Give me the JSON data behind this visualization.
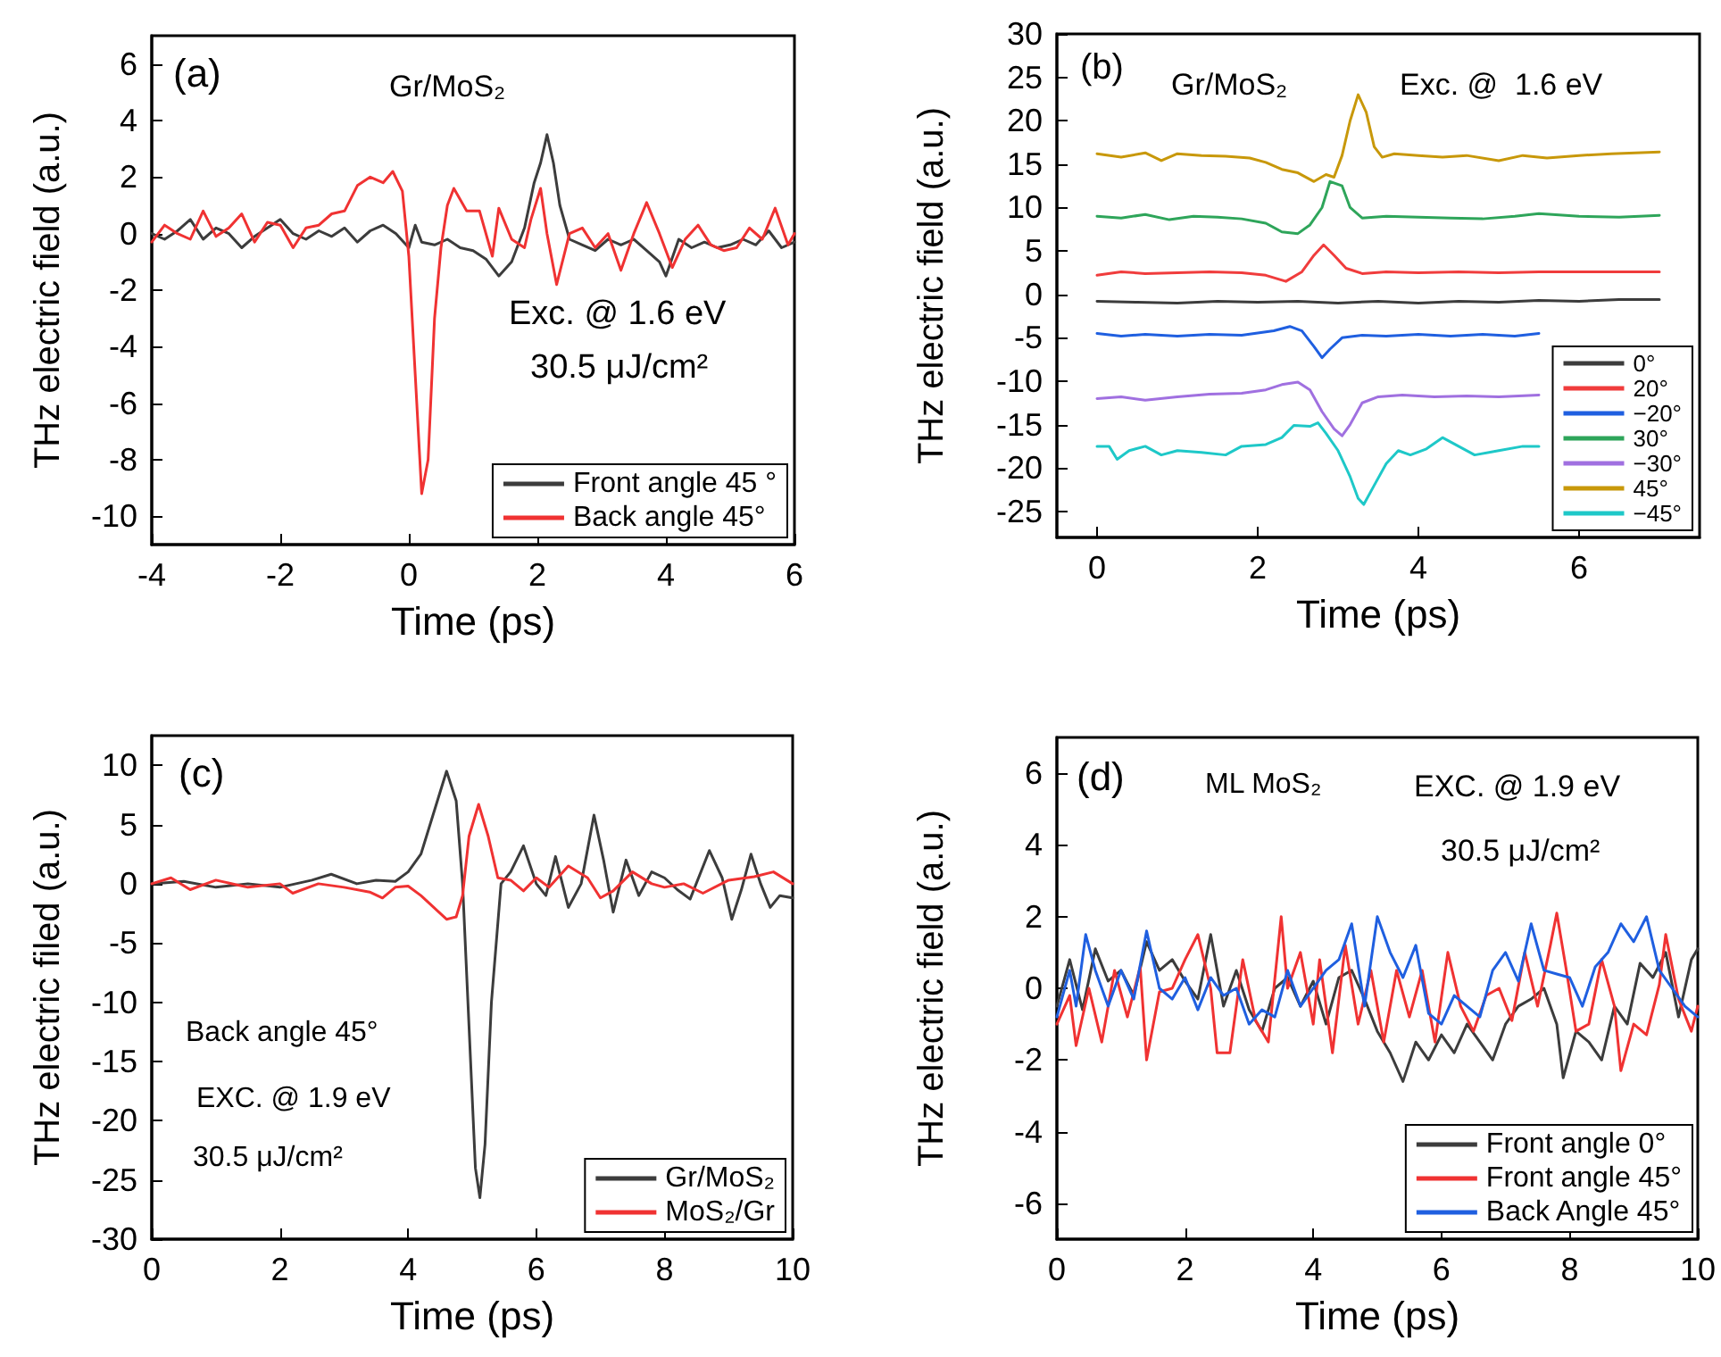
{
  "chart_data": [
    {
      "type": "line",
      "xlabel": "Time (ps)",
      "ylabel": "THz electric field (a.u.)",
      "xlim": [
        -4,
        6
      ],
      "xticks": [
        -4,
        -2,
        0,
        2,
        4,
        6
      ],
      "ylim": [
        -11,
        7
      ],
      "yticks": [
        -10,
        -8,
        -6,
        -4,
        -2,
        0,
        2,
        4,
        6
      ],
      "legend": "bottom right",
      "marker": "none",
      "annotations": [
        "(a)",
        "Gr/MoS₂",
        "Exc. @ 1.6 eV",
        "30.5 μJ/cm²"
      ],
      "series": [
        {
          "name": "Front angle 45 °",
          "color": "#3c3c3c",
          "x": [
            -4,
            -3.8,
            -3.6,
            -3.4,
            -3.2,
            -3,
            -2.8,
            -2.6,
            -2.4,
            -2.2,
            -2,
            -1.8,
            -1.6,
            -1.4,
            -1.2,
            -1,
            -0.8,
            -0.6,
            -0.4,
            -0.2,
            0,
            0.1,
            0.2,
            0.4,
            0.6,
            0.8,
            1,
            1.2,
            1.4,
            1.6,
            1.8,
            1.95,
            2.05,
            2.15,
            2.25,
            2.35,
            2.5,
            2.7,
            2.9,
            3.1,
            3.3,
            3.5,
            3.7,
            3.9,
            4,
            4.2,
            4.4,
            4.6,
            4.8,
            5,
            5.2,
            5.4,
            5.6,
            5.8,
            6
          ],
          "values": [
            0,
            -0.2,
            0.1,
            0.5,
            -0.2,
            0.2,
            0,
            -0.5,
            -0.1,
            0.2,
            0.5,
            0,
            -0.2,
            0.1,
            -0.1,
            0.2,
            -0.3,
            0.1,
            0.3,
            0,
            -0.5,
            0.3,
            -0.3,
            -0.4,
            -0.2,
            -0.5,
            -0.6,
            -0.9,
            -1.5,
            -1,
            0.2,
            1.8,
            2.5,
            3.5,
            2.5,
            1,
            -0.2,
            -0.4,
            -0.6,
            -0.2,
            -0.4,
            -0.2,
            -0.6,
            -1,
            -1.5,
            -0.2,
            -0.5,
            -0.3,
            -0.5,
            -0.4,
            -0.2,
            -0.4,
            0.1,
            -0.5,
            -0.3
          ]
        },
        {
          "name": "Back angle 45°",
          "color": "#f03232",
          "x": [
            -4,
            -3.8,
            -3.6,
            -3.4,
            -3.2,
            -3,
            -2.8,
            -2.6,
            -2.4,
            -2.2,
            -2,
            -1.8,
            -1.6,
            -1.4,
            -1.2,
            -1,
            -0.8,
            -0.6,
            -0.4,
            -0.25,
            -0.1,
            0,
            0.1,
            0.2,
            0.3,
            0.4,
            0.5,
            0.6,
            0.7,
            0.9,
            1.1,
            1.3,
            1.4,
            1.6,
            1.8,
            1.9,
            2.05,
            2.15,
            2.3,
            2.5,
            2.7,
            2.9,
            3.1,
            3.3,
            3.5,
            3.7,
            3.9,
            4.1,
            4.3,
            4.5,
            4.7,
            4.9,
            5.1,
            5.3,
            5.5,
            5.7,
            5.9,
            6
          ],
          "values": [
            -0.3,
            0.3,
            0,
            -0.2,
            0.8,
            -0.1,
            0.2,
            0.7,
            -0.3,
            0.4,
            0.3,
            -0.5,
            0.2,
            0.3,
            0.7,
            0.8,
            1.7,
            2,
            1.8,
            2.2,
            1.5,
            -0.8,
            -5,
            -9.2,
            -8,
            -3,
            -0.5,
            1,
            1.6,
            0.8,
            0.8,
            -0.8,
            0.9,
            -0.2,
            -0.5,
            0.5,
            1.6,
            0,
            -1.8,
            0,
            0.2,
            -0.5,
            0,
            -1.3,
            0,
            1.1,
            0,
            -1.2,
            -0.2,
            0.3,
            -0.4,
            -0.6,
            -0.5,
            0.2,
            -0.2,
            0.9,
            -0.4,
            0
          ]
        }
      ]
    },
    {
      "type": "line",
      "xlabel": "Time (ps)",
      "ylabel": "THz electric field (a.u.)",
      "xlim": [
        -0.5,
        7.5
      ],
      "xticks": [
        0,
        2,
        4,
        6
      ],
      "ylim": [
        -28,
        30
      ],
      "yticks": [
        -25,
        -20,
        -15,
        -10,
        -5,
        0,
        5,
        10,
        15,
        20,
        25,
        30
      ],
      "legend": "bottom right",
      "marker": "none",
      "annotations": [
        "(b)",
        "Gr/MoS₂",
        "Exc. @  1.6 eV"
      ],
      "series": [
        {
          "name": "0°",
          "color": "#3c3c3c",
          "x": [
            0,
            0.5,
            1,
            1.5,
            2,
            2.5,
            3,
            3.5,
            4,
            4.5,
            5,
            5.5,
            6,
            6.5,
            7
          ],
          "values": [
            -0.8,
            -0.9,
            -1,
            -0.8,
            -0.9,
            -0.8,
            -1,
            -0.8,
            -1,
            -0.8,
            -0.9,
            -0.7,
            -0.8,
            -0.6,
            -0.6
          ]
        },
        {
          "name": "20°",
          "color": "#f03c3c",
          "x": [
            0,
            0.3,
            0.6,
            1,
            1.4,
            1.8,
            2.1,
            2.35,
            2.55,
            2.7,
            2.82,
            2.95,
            3.1,
            3.3,
            3.6,
            4,
            4.5,
            5,
            5.5,
            6,
            6.5,
            7
          ],
          "values": [
            2.2,
            2.6,
            2.4,
            2.5,
            2.6,
            2.5,
            2.2,
            1.5,
            2.6,
            4.5,
            5.7,
            4.5,
            3,
            2.4,
            2.6,
            2.5,
            2.6,
            2.5,
            2.6,
            2.6,
            2.6,
            2.6
          ]
        },
        {
          "name": "−20°",
          "color": "#1f5fe0",
          "x": [
            0,
            0.3,
            0.6,
            1,
            1.4,
            1.8,
            2.2,
            2.4,
            2.55,
            2.7,
            2.8,
            2.9,
            3.05,
            3.3,
            3.6,
            4,
            4.4,
            4.8,
            5.2,
            5.5
          ],
          "values": [
            -4.5,
            -4.8,
            -4.6,
            -4.8,
            -4.6,
            -4.7,
            -4.2,
            -3.7,
            -4.2,
            -6,
            -7.3,
            -6.3,
            -5,
            -4.7,
            -4.8,
            -4.6,
            -4.8,
            -4.6,
            -4.8,
            -4.5
          ]
        },
        {
          "name": "30°",
          "color": "#2ea55a",
          "x": [
            0,
            0.3,
            0.6,
            0.9,
            1.2,
            1.5,
            1.8,
            2.1,
            2.3,
            2.5,
            2.65,
            2.8,
            2.9,
            3.05,
            3.15,
            3.3,
            3.6,
            4,
            4.4,
            4.8,
            5.2,
            5.5,
            6,
            6.5,
            7
          ],
          "values": [
            9,
            8.8,
            9.2,
            8.6,
            9,
            8.9,
            8.7,
            8.2,
            7.2,
            7,
            8,
            10,
            13,
            12.5,
            10,
            8.8,
            9,
            8.9,
            8.8,
            8.7,
            9,
            9.3,
            9,
            8.9,
            9.1
          ]
        },
        {
          "name": "−30°",
          "color": "#a070e0",
          "x": [
            0,
            0.3,
            0.6,
            1,
            1.4,
            1.8,
            2.1,
            2.3,
            2.5,
            2.65,
            2.8,
            2.95,
            3.05,
            3.15,
            3.3,
            3.5,
            3.8,
            4.2,
            4.6,
            5,
            5.5
          ],
          "values": [
            -12,
            -11.8,
            -12.2,
            -11.8,
            -11.5,
            -11.4,
            -11,
            -10.4,
            -10.1,
            -11,
            -13.5,
            -15.5,
            -16.3,
            -15,
            -12.5,
            -11.8,
            -11.6,
            -11.8,
            -11.7,
            -11.8,
            -11.6
          ]
        },
        {
          "name": "45°",
          "color": "#c8980a",
          "x": [
            0,
            0.3,
            0.6,
            0.8,
            1,
            1.3,
            1.6,
            1.9,
            2.1,
            2.3,
            2.5,
            2.7,
            2.85,
            2.95,
            3.05,
            3.15,
            3.25,
            3.35,
            3.45,
            3.55,
            3.7,
            4,
            4.3,
            4.6,
            5,
            5.3,
            5.6,
            6,
            6.4,
            7
          ],
          "values": [
            16.2,
            15.8,
            16.3,
            15.4,
            16.2,
            16,
            15.9,
            15.7,
            15.2,
            14.4,
            14,
            13,
            13.8,
            13.5,
            16,
            20,
            23,
            21,
            17,
            15.8,
            16.2,
            16,
            15.8,
            16,
            15.4,
            16,
            15.7,
            16,
            16.2,
            16.4
          ]
        },
        {
          "name": "−45°",
          "color": "#1ec8c8",
          "x": [
            0,
            0.15,
            0.25,
            0.4,
            0.6,
            0.8,
            1,
            1.3,
            1.6,
            1.8,
            2.1,
            2.3,
            2.45,
            2.65,
            2.75,
            2.85,
            3,
            3.15,
            3.25,
            3.32,
            3.45,
            3.6,
            3.75,
            3.9,
            4.1,
            4.3,
            4.5,
            4.7,
            5,
            5.3,
            5.5
          ],
          "values": [
            -17.5,
            -17.5,
            -19,
            -18,
            -17.5,
            -18.5,
            -18,
            -18.2,
            -18.5,
            -17.5,
            -17.3,
            -16.5,
            -15.1,
            -15.2,
            -14.8,
            -16,
            -18,
            -21,
            -23.5,
            -24.2,
            -22,
            -19.5,
            -18,
            -18.5,
            -17.8,
            -16.5,
            -17.5,
            -18.5,
            -18,
            -17.5,
            -17.5
          ]
        }
      ]
    },
    {
      "type": "line",
      "xlabel": "Time (ps)",
      "ylabel": "THz electric filed (a.u.)",
      "xlim": [
        0,
        10
      ],
      "xticks": [
        0,
        2,
        4,
        6,
        8,
        10
      ],
      "ylim": [
        -30,
        12.5
      ],
      "yticks": [
        -30,
        -25,
        -20,
        -15,
        -10,
        -5,
        0,
        5,
        10
      ],
      "legend": "bottom right",
      "marker": "none",
      "annotations": [
        "(c)",
        "Back angle 45°",
        "EXC. @ 1.9 eV",
        "30.5 μJ/cm²"
      ],
      "series": [
        {
          "name": "Gr/MoS₂",
          "color": "#3c3c3c",
          "x": [
            0,
            0.5,
            1,
            1.5,
            2,
            2.5,
            2.8,
            3.2,
            3.5,
            3.8,
            4,
            4.2,
            4.4,
            4.6,
            4.75,
            4.85,
            4.95,
            5.05,
            5.12,
            5.2,
            5.3,
            5.45,
            5.6,
            5.8,
            6,
            6.15,
            6.3,
            6.5,
            6.7,
            6.9,
            7.05,
            7.2,
            7.4,
            7.6,
            7.8,
            8,
            8.2,
            8.4,
            8.7,
            8.9,
            9.05,
            9.2,
            9.35,
            9.5,
            9.65,
            9.8,
            10
          ],
          "values": [
            0,
            0.2,
            -0.3,
            0,
            -0.3,
            0.3,
            0.8,
            0,
            0.3,
            0.2,
            1,
            2.5,
            6,
            9.5,
            7,
            0,
            -12,
            -24,
            -26.5,
            -22,
            -10,
            0,
            1,
            3.2,
            0,
            -1,
            2.3,
            -2,
            0,
            5.8,
            2,
            -2.4,
            2,
            -1,
            1,
            0.5,
            -0.5,
            -1.3,
            2.8,
            0.5,
            -3,
            -0.5,
            2.5,
            0,
            -2,
            -1,
            -1.2
          ]
        },
        {
          "name": "MoS₂/Gr",
          "color": "#f03232",
          "x": [
            0,
            0.3,
            0.6,
            1,
            1.5,
            2,
            2.2,
            2.6,
            3,
            3.4,
            3.6,
            3.8,
            4,
            4.2,
            4.4,
            4.6,
            4.75,
            4.85,
            4.95,
            5.1,
            5.25,
            5.4,
            5.6,
            5.8,
            6,
            6.2,
            6.5,
            6.8,
            7,
            7.2,
            7.5,
            7.8,
            8,
            8.3,
            8.6,
            9,
            9.4,
            9.7,
            10
          ],
          "values": [
            0,
            0.5,
            -0.5,
            0.3,
            -0.3,
            0,
            -0.8,
            0,
            -0.3,
            -0.7,
            -1.2,
            -0.3,
            -0.2,
            -1,
            -2,
            -3,
            -2.8,
            -1,
            4,
            6.7,
            4,
            0.5,
            0.3,
            -0.6,
            0.5,
            -0.3,
            1.5,
            0.5,
            -1.2,
            -0.6,
            1,
            0,
            -0.3,
            0,
            -0.8,
            0.3,
            0.6,
            1,
            0
          ]
        }
      ]
    },
    {
      "type": "line",
      "xlabel": "Time (ps)",
      "ylabel": "THz electric field (a.u.)",
      "xlim": [
        0,
        10
      ],
      "xticks": [
        0,
        2,
        4,
        6,
        8,
        10
      ],
      "ylim": [
        -7,
        7
      ],
      "yticks": [
        -6,
        -4,
        -2,
        0,
        2,
        4,
        6
      ],
      "legend": "bottom right",
      "marker": "none",
      "annotations": [
        "(d)",
        "ML MoS₂",
        "EXC. @ 1.9 eV",
        "30.5 μJ/cm²"
      ],
      "series": [
        {
          "name": "Front angle 0°",
          "color": "#3c3c3c",
          "x": [
            0,
            0.2,
            0.4,
            0.6,
            0.8,
            1,
            1.2,
            1.4,
            1.6,
            1.8,
            2,
            2.2,
            2.4,
            2.6,
            2.8,
            3,
            3.2,
            3.4,
            3.6,
            3.8,
            4,
            4.2,
            4.4,
            4.6,
            4.8,
            5,
            5.2,
            5.4,
            5.6,
            5.8,
            6,
            6.2,
            6.4,
            6.6,
            6.8,
            7,
            7.2,
            7.4,
            7.6,
            7.8,
            7.9,
            8.1,
            8.3,
            8.5,
            8.7,
            8.9,
            9.1,
            9.3,
            9.5,
            9.7,
            9.9,
            10
          ],
          "values": [
            -0.5,
            0.8,
            -0.6,
            1.1,
            0.2,
            0.5,
            -0.2,
            1.3,
            0.5,
            0.8,
            0.2,
            -0.3,
            1.5,
            -0.5,
            0.5,
            -0.6,
            -1.2,
            0,
            0.3,
            -0.5,
            0.2,
            -1,
            0.3,
            0.5,
            -0.3,
            -1.2,
            -1.8,
            -2.6,
            -1.5,
            -2,
            -1.3,
            -1.8,
            -1,
            -1.5,
            -2,
            -1,
            -0.5,
            -0.3,
            0,
            -1,
            -2.5,
            -1.2,
            -1.5,
            -2,
            -0.5,
            -1,
            0.7,
            0.3,
            1,
            -0.8,
            0.8,
            1.1
          ]
        },
        {
          "name": "Front angle 45°",
          "color": "#f03232",
          "x": [
            0,
            0.2,
            0.3,
            0.5,
            0.7,
            0.9,
            1.1,
            1.3,
            1.4,
            1.6,
            1.8,
            2,
            2.2,
            2.4,
            2.5,
            2.7,
            2.9,
            3.1,
            3.3,
            3.5,
            3.6,
            3.8,
            4,
            4.1,
            4.3,
            4.5,
            4.7,
            4.9,
            5.1,
            5.3,
            5.5,
            5.7,
            5.9,
            6.1,
            6.3,
            6.5,
            6.7,
            6.9,
            7.1,
            7.3,
            7.5,
            7.7,
            7.8,
            7.95,
            8.1,
            8.3,
            8.5,
            8.7,
            8.8,
            9,
            9.2,
            9.4,
            9.5,
            9.7,
            9.9,
            10
          ],
          "values": [
            -1,
            -0.2,
            -1.6,
            0,
            -1.5,
            0.5,
            -0.8,
            0.6,
            -2,
            -0.1,
            0,
            0.8,
            1.5,
            0,
            -1.8,
            -1.8,
            0.8,
            -0.9,
            -1.5,
            2,
            0,
            1,
            -1,
            0.8,
            -1.8,
            1.2,
            -1,
            0.5,
            -1.5,
            0.5,
            -0.8,
            0.5,
            -1.5,
            1,
            -0.5,
            -1.2,
            -0.2,
            0,
            -0.9,
            1,
            -0.5,
            1.2,
            2.1,
            0.5,
            -1.2,
            -1,
            0.8,
            -0.5,
            -2.3,
            -1,
            -1.3,
            0.1,
            1.5,
            -0.3,
            -1.2,
            -0.5
          ]
        },
        {
          "name": "Back Angle 45°",
          "color": "#1f5fe0",
          "x": [
            0,
            0.2,
            0.3,
            0.45,
            0.6,
            0.8,
            1,
            1.2,
            1.4,
            1.6,
            1.8,
            2,
            2.2,
            2.4,
            2.6,
            2.8,
            3,
            3.2,
            3.4,
            3.6,
            3.8,
            4,
            4.2,
            4.4,
            4.6,
            4.8,
            5,
            5.2,
            5.4,
            5.6,
            5.8,
            6,
            6.2,
            6.4,
            6.6,
            6.8,
            7,
            7.2,
            7.4,
            7.6,
            7.8,
            8,
            8.2,
            8.4,
            8.6,
            8.8,
            9,
            9.2,
            9.4,
            9.6,
            9.8,
            10
          ],
          "values": [
            -0.8,
            0.5,
            -0.5,
            1.5,
            0.5,
            -0.5,
            0.5,
            -0.3,
            1.6,
            0,
            -0.3,
            0.3,
            -0.6,
            0.3,
            -0.2,
            0,
            -1,
            -0.6,
            -0.8,
            0.5,
            -0.5,
            0,
            0.5,
            0.8,
            1.8,
            -0.5,
            2,
            1,
            0.3,
            1.2,
            -0.7,
            -1,
            -0.2,
            -0.5,
            -0.8,
            0.5,
            1,
            0.2,
            1.8,
            0.5,
            0.4,
            0.3,
            -0.5,
            0.6,
            1,
            1.8,
            1.3,
            2,
            0.5,
            0,
            -0.5,
            -0.8
          ]
        }
      ]
    }
  ]
}
